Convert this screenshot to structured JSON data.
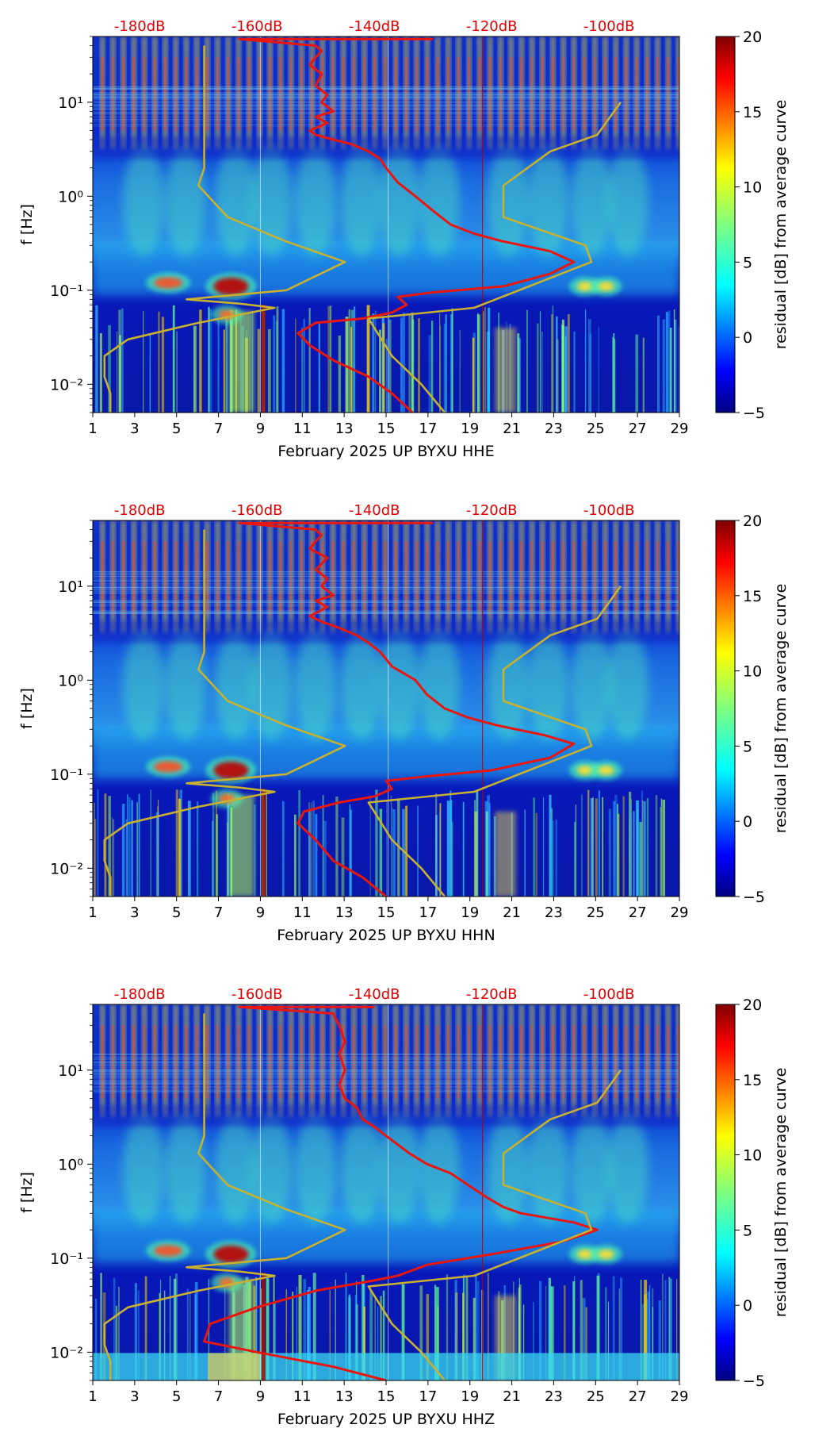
{
  "chart_data": [
    {
      "type": "heatmap",
      "title": "February 2025 UP BYXU  HHE",
      "xlabel": "February 2025 UP BYXU  HHE",
      "ylabel": "f [Hz]",
      "x_ticks": [
        "1",
        "3",
        "5",
        "7",
        "9",
        "11",
        "13",
        "15",
        "17",
        "19",
        "21",
        "23",
        "25",
        "27",
        "29"
      ],
      "xlim": [
        1,
        29
      ],
      "y_ticks": [
        "10⁻²",
        "10⁻¹",
        "10⁰",
        "10¹"
      ],
      "ylim": [
        0.005,
        50
      ],
      "top_axis_ticks": [
        "-180dB",
        "-160dB",
        "-140dB",
        "-120dB",
        "-100dB"
      ],
      "top_axis_range_db": [
        -188,
        -88
      ],
      "colorbar": {
        "label": "residual [dB] from average curve",
        "ticks": [
          "−5",
          "0",
          "5",
          "10",
          "15",
          "20"
        ],
        "range": [
          -5,
          20
        ]
      },
      "series": [
        {
          "name": "average PSD",
          "color": "#e8160f",
          "points": [
            [
              -133.5,
              0.005
            ],
            [
              -137,
              0.008
            ],
            [
              -141,
              0.012
            ],
            [
              -147,
              0.018
            ],
            [
              -151,
              0.026
            ],
            [
              -153,
              0.035
            ],
            [
              -150,
              0.045
            ],
            [
              -142,
              0.05
            ],
            [
              -137,
              0.058
            ],
            [
              -134.5,
              0.07
            ],
            [
              -136,
              0.085
            ],
            [
              -130,
              0.095
            ],
            [
              -118,
              0.11
            ],
            [
              -110,
              0.15
            ],
            [
              -106,
              0.2
            ],
            [
              -110,
              0.26
            ],
            [
              -118,
              0.33
            ],
            [
              -123,
              0.4
            ],
            [
              -127,
              0.5
            ],
            [
              -130,
              0.7
            ],
            [
              -133,
              1.0
            ],
            [
              -136,
              1.4
            ],
            [
              -138,
              2
            ],
            [
              -139,
              2.5
            ],
            [
              -141,
              3
            ],
            [
              -144,
              3.6
            ],
            [
              -147,
              4
            ],
            [
              -150,
              4.5
            ],
            [
              -151,
              5
            ],
            [
              -148,
              6
            ],
            [
              -150,
              7
            ],
            [
              -147,
              8
            ],
            [
              -149,
              10
            ],
            [
              -148,
              12
            ],
            [
              -150,
              15
            ],
            [
              -149,
              20
            ],
            [
              -151,
              25
            ],
            [
              -150,
              30
            ],
            [
              -149,
              35
            ],
            [
              -150,
              40
            ],
            [
              -163,
              47
            ],
            [
              -140,
              47
            ],
            [
              -130,
              47
            ]
          ]
        },
        {
          "name": "model bounds",
          "color": "#c8b030",
          "points": [
            [
              -185,
              0.005
            ],
            [
              -185,
              0.008
            ],
            [
              -186,
              0.012
            ],
            [
              -186,
              0.02
            ],
            [
              -182,
              0.03
            ],
            [
              -170,
              0.045
            ],
            [
              -157,
              0.065
            ],
            [
              -163,
              0.072
            ],
            [
              -172,
              0.08
            ],
            [
              -155,
              0.1
            ],
            [
              -145,
              0.2
            ],
            [
              -155,
              0.33
            ],
            [
              -165,
              0.6
            ],
            [
              -170,
              1.3
            ],
            [
              -169,
              2
            ],
            [
              -169,
              5
            ],
            [
              -169,
              10
            ],
            [
              -169,
              20
            ],
            [
              -169,
              40
            ]
          ]
        },
        {
          "name": "model bounds (high)",
          "color": "#c8b030",
          "points": [
            [
              -128,
              0.005
            ],
            [
              -132,
              0.01
            ],
            [
              -137,
              0.02
            ],
            [
              -141,
              0.05
            ],
            [
              -123,
              0.065
            ],
            [
              -103,
              0.2
            ],
            [
              -104,
              0.3
            ],
            [
              -118,
              0.6
            ],
            [
              -118,
              1.3
            ],
            [
              -110,
              3
            ],
            [
              -102,
              4.5
            ],
            [
              -98,
              10
            ]
          ]
        }
      ]
    },
    {
      "type": "heatmap",
      "title": "February 2025 UP BYXU  HHN",
      "xlabel": "February 2025 UP BYXU  HHN",
      "ylabel": "f [Hz]",
      "x_ticks": [
        "1",
        "3",
        "5",
        "7",
        "9",
        "11",
        "13",
        "15",
        "17",
        "19",
        "21",
        "23",
        "25",
        "27",
        "29"
      ],
      "xlim": [
        1,
        29
      ],
      "y_ticks": [
        "10⁻²",
        "10⁻¹",
        "10⁰",
        "10¹"
      ],
      "ylim": [
        0.005,
        50
      ],
      "top_axis_ticks": [
        "-180dB",
        "-160dB",
        "-140dB",
        "-120dB",
        "-100dB"
      ],
      "top_axis_range_db": [
        -188,
        -88
      ],
      "colorbar": {
        "label": "residual [dB] from average curve",
        "ticks": [
          "−5",
          "0",
          "5",
          "10",
          "15",
          "20"
        ],
        "range": [
          -5,
          20
        ]
      },
      "series": [
        {
          "name": "average PSD",
          "color": "#e8160f",
          "points": [
            [
              -138,
              0.005
            ],
            [
              -142,
              0.008
            ],
            [
              -147,
              0.012
            ],
            [
              -150,
              0.02
            ],
            [
              -153,
              0.03
            ],
            [
              -152,
              0.04
            ],
            [
              -146,
              0.05
            ],
            [
              -140,
              0.058
            ],
            [
              -137,
              0.07
            ],
            [
              -138,
              0.085
            ],
            [
              -131,
              0.095
            ],
            [
              -120,
              0.11
            ],
            [
              -110,
              0.15
            ],
            [
              -106,
              0.21
            ],
            [
              -111,
              0.26
            ],
            [
              -119,
              0.33
            ],
            [
              -124,
              0.4
            ],
            [
              -128,
              0.5
            ],
            [
              -131,
              0.7
            ],
            [
              -133,
              1.0
            ],
            [
              -137,
              1.4
            ],
            [
              -139,
              2
            ],
            [
              -141,
              2.5
            ],
            [
              -143,
              3
            ],
            [
              -146,
              3.6
            ],
            [
              -149,
              4.2
            ],
            [
              -151,
              4.8
            ],
            [
              -148,
              6
            ],
            [
              -150,
              7
            ],
            [
              -147,
              8
            ],
            [
              -149,
              10
            ],
            [
              -148,
              12
            ],
            [
              -150,
              15
            ],
            [
              -148,
              20
            ],
            [
              -151,
              25
            ],
            [
              -150,
              30
            ],
            [
              -149,
              35
            ],
            [
              -150,
              40
            ],
            [
              -163,
              47
            ],
            [
              -140,
              47
            ],
            [
              -130,
              47
            ]
          ]
        },
        {
          "name": "model bounds",
          "color": "#c8b030",
          "points": [
            [
              -185,
              0.005
            ],
            [
              -185,
              0.008
            ],
            [
              -186,
              0.012
            ],
            [
              -186,
              0.02
            ],
            [
              -182,
              0.03
            ],
            [
              -170,
              0.045
            ],
            [
              -157,
              0.065
            ],
            [
              -163,
              0.072
            ],
            [
              -172,
              0.08
            ],
            [
              -155,
              0.1
            ],
            [
              -145,
              0.2
            ],
            [
              -155,
              0.33
            ],
            [
              -165,
              0.6
            ],
            [
              -170,
              1.3
            ],
            [
              -169,
              2
            ],
            [
              -169,
              5
            ],
            [
              -169,
              10
            ],
            [
              -169,
              20
            ],
            [
              -169,
              40
            ]
          ]
        },
        {
          "name": "model bounds (high)",
          "color": "#c8b030",
          "points": [
            [
              -128,
              0.005
            ],
            [
              -132,
              0.01
            ],
            [
              -137,
              0.02
            ],
            [
              -141,
              0.05
            ],
            [
              -123,
              0.065
            ],
            [
              -103,
              0.2
            ],
            [
              -104,
              0.3
            ],
            [
              -118,
              0.6
            ],
            [
              -118,
              1.3
            ],
            [
              -110,
              3
            ],
            [
              -102,
              4.5
            ],
            [
              -98,
              10
            ]
          ]
        }
      ]
    },
    {
      "type": "heatmap",
      "title": "February 2025 UP BYXU  HHZ",
      "xlabel": "February 2025 UP BYXU  HHZ",
      "ylabel": "f [Hz]",
      "x_ticks": [
        "1",
        "3",
        "5",
        "7",
        "9",
        "11",
        "13",
        "15",
        "17",
        "19",
        "21",
        "23",
        "25",
        "27",
        "29"
      ],
      "xlim": [
        1,
        29
      ],
      "y_ticks": [
        "10⁻²",
        "10⁻¹",
        "10⁰",
        "10¹"
      ],
      "ylim": [
        0.005,
        50
      ],
      "top_axis_ticks": [
        "-180dB",
        "-160dB",
        "-140dB",
        "-120dB",
        "-100dB"
      ],
      "top_axis_range_db": [
        -188,
        -88
      ],
      "colorbar": {
        "label": "residual [dB] from average curve",
        "ticks": [
          "−5",
          "0",
          "5",
          "10",
          "15",
          "20"
        ],
        "range": [
          -5,
          20
        ]
      },
      "series": [
        {
          "name": "average PSD",
          "color": "#e8160f",
          "points": [
            [
              -138,
              0.005
            ],
            [
              -147,
              0.007
            ],
            [
              -160,
              0.01
            ],
            [
              -169,
              0.013
            ],
            [
              -168,
              0.02
            ],
            [
              -160,
              0.03
            ],
            [
              -150,
              0.045
            ],
            [
              -140,
              0.058
            ],
            [
              -136,
              0.065
            ],
            [
              -131,
              0.085
            ],
            [
              -120,
              0.11
            ],
            [
              -108,
              0.15
            ],
            [
              -102,
              0.2
            ],
            [
              -106,
              0.24
            ],
            [
              -115,
              0.3
            ],
            [
              -118,
              0.35
            ],
            [
              -121,
              0.45
            ],
            [
              -124,
              0.6
            ],
            [
              -127,
              0.8
            ],
            [
              -131,
              1.0
            ],
            [
              -134,
              1.3
            ],
            [
              -138,
              2
            ],
            [
              -140,
              2.5
            ],
            [
              -142,
              3
            ],
            [
              -143,
              4
            ],
            [
              -145,
              5
            ],
            [
              -146,
              7
            ],
            [
              -145,
              10
            ],
            [
              -146,
              15
            ],
            [
              -145,
              20
            ],
            [
              -146,
              30
            ],
            [
              -147,
              40
            ],
            [
              -163,
              47
            ],
            [
              -140,
              47
            ]
          ]
        },
        {
          "name": "model bounds",
          "color": "#c8b030",
          "points": [
            [
              -185,
              0.005
            ],
            [
              -185,
              0.008
            ],
            [
              -186,
              0.012
            ],
            [
              -186,
              0.02
            ],
            [
              -182,
              0.03
            ],
            [
              -170,
              0.045
            ],
            [
              -157,
              0.065
            ],
            [
              -163,
              0.072
            ],
            [
              -172,
              0.08
            ],
            [
              -155,
              0.1
            ],
            [
              -145,
              0.2
            ],
            [
              -155,
              0.33
            ],
            [
              -165,
              0.6
            ],
            [
              -170,
              1.3
            ],
            [
              -169,
              2
            ],
            [
              -169,
              5
            ],
            [
              -169,
              10
            ],
            [
              -169,
              20
            ],
            [
              -169,
              40
            ]
          ]
        },
        {
          "name": "model bounds (high)",
          "color": "#c8b030",
          "points": [
            [
              -128,
              0.005
            ],
            [
              -132,
              0.01
            ],
            [
              -137,
              0.02
            ],
            [
              -141,
              0.05
            ],
            [
              -123,
              0.065
            ],
            [
              -103,
              0.2
            ],
            [
              -104,
              0.3
            ],
            [
              -118,
              0.6
            ],
            [
              -118,
              1.3
            ],
            [
              -110,
              3
            ],
            [
              -102,
              4.5
            ],
            [
              -98,
              10
            ]
          ]
        }
      ]
    }
  ]
}
